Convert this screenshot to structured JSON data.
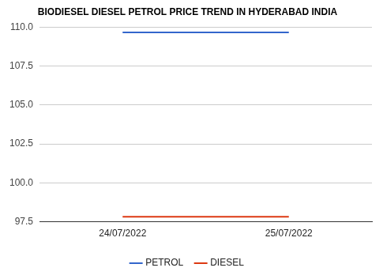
{
  "chart_data": {
    "type": "line",
    "title": "BIODIESEL DIESEL PETROL PRICE TREND IN HYDERABAD INDIA",
    "categories": [
      "24/07/2022",
      "25/07/2022"
    ],
    "series": [
      {
        "name": "PETROL",
        "color": "#3366cc",
        "values": [
          109.66,
          109.66
        ]
      },
      {
        "name": "DIESEL",
        "color": "#dc3912",
        "values": [
          97.82,
          97.82
        ]
      }
    ],
    "ylim": [
      97.5,
      110
    ],
    "yticks": [
      97.5,
      {
        "value": 100,
        "label": "100.0"
      },
      102.5,
      {
        "value": 105,
        "label": "105.0"
      },
      107.5,
      {
        "value": 110,
        "label": "110.0"
      }
    ],
    "grid": true,
    "legend": "bottom"
  }
}
